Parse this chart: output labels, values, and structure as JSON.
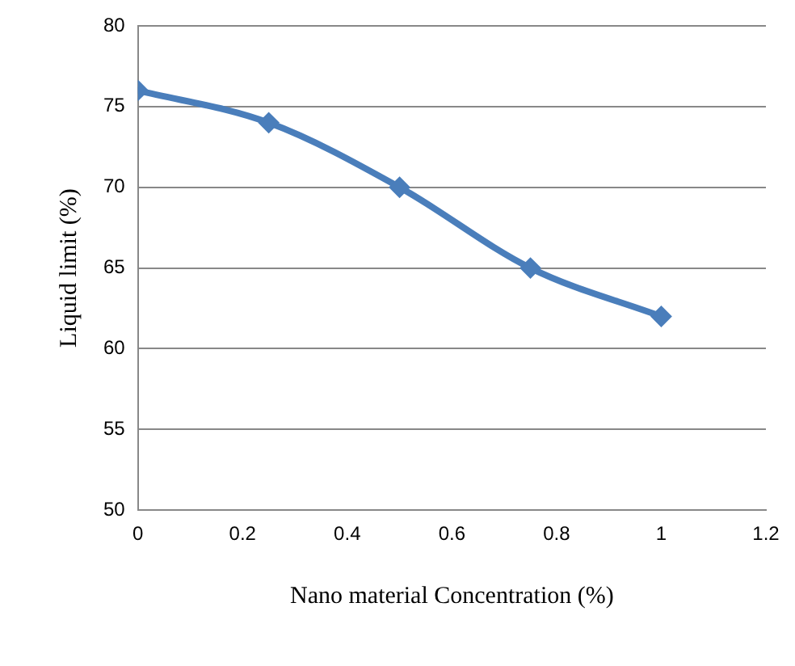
{
  "chart_data": {
    "type": "line",
    "xlabel": "Nano material Concentration (%)",
    "ylabel": "Liquid limit (%)",
    "x": [
      0,
      0.25,
      0.5,
      0.75,
      1
    ],
    "series": [
      {
        "color": "#4a7ebb",
        "values": [
          76,
          74,
          70,
          65,
          62
        ]
      }
    ],
    "xlim": [
      0,
      1.2
    ],
    "xticks": [
      0,
      0.2,
      0.4,
      0.6,
      0.8,
      1,
      1.2
    ],
    "ylim": [
      50,
      80
    ],
    "yticks": [
      50,
      55,
      60,
      65,
      70,
      75,
      80
    ],
    "grid": "y",
    "legend": false,
    "marker": "diamond",
    "line_style": "solid"
  }
}
